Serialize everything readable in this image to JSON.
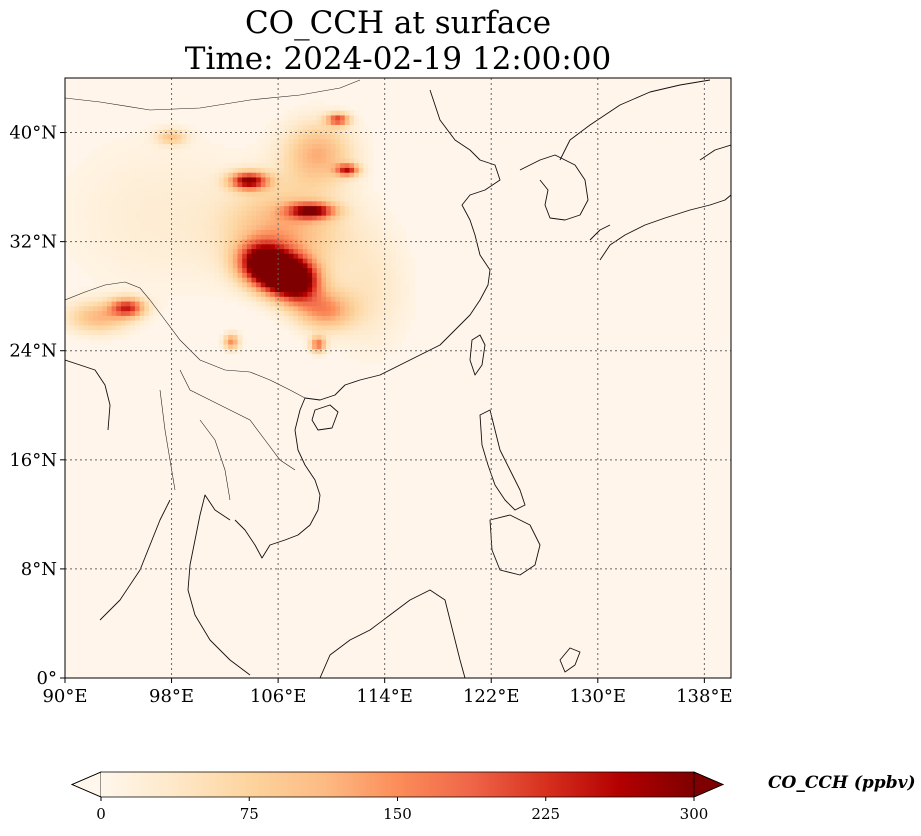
{
  "title": {
    "line1": "CO_CCH at surface",
    "line2": "Time: 2024-02-19 12:00:00"
  },
  "map": {
    "projection": "PlateCarree",
    "lon_range": [
      90,
      140
    ],
    "lat_range": [
      0,
      44
    ],
    "x_ticks": [
      {
        "value": 90,
        "label": "90°E"
      },
      {
        "value": 98,
        "label": "98°E"
      },
      {
        "value": 106,
        "label": "106°E"
      },
      {
        "value": 114,
        "label": "114°E"
      },
      {
        "value": 122,
        "label": "122°E"
      },
      {
        "value": 130,
        "label": "130°E"
      },
      {
        "value": 138,
        "label": "138°E"
      }
    ],
    "y_ticks": [
      {
        "value": 0,
        "label": "0°"
      },
      {
        "value": 8,
        "label": "8°N"
      },
      {
        "value": 16,
        "label": "16°N"
      },
      {
        "value": 24,
        "label": "24°N"
      },
      {
        "value": 32,
        "label": "32°N"
      },
      {
        "value": 40,
        "label": "40°N"
      }
    ],
    "gridlines": true,
    "background_color": "#fff5eb",
    "field": {
      "variable": "CO_CCH",
      "units": "ppbv",
      "hotspots": [
        {
          "lon": 106.2,
          "lat": 29.6,
          "value": 300,
          "spread_lon": 1.4,
          "spread_lat": 1.0
        },
        {
          "lon": 104.8,
          "lat": 30.6,
          "value": 270,
          "spread_lon": 1.3,
          "spread_lat": 1.0
        },
        {
          "lon": 107.5,
          "lat": 29.0,
          "value": 230,
          "spread_lon": 1.2,
          "spread_lat": 1.1
        },
        {
          "lon": 103.8,
          "lat": 36.5,
          "value": 270,
          "spread_lon": 1.0,
          "spread_lat": 0.45
        },
        {
          "lon": 108.5,
          "lat": 34.3,
          "value": 250,
          "spread_lon": 1.2,
          "spread_lat": 0.4
        },
        {
          "lon": 111.2,
          "lat": 37.3,
          "value": 210,
          "spread_lon": 0.6,
          "spread_lat": 0.3
        },
        {
          "lon": 109.0,
          "lat": 38.5,
          "value": 120,
          "spread_lon": 1.8,
          "spread_lat": 1.6
        },
        {
          "lon": 110.5,
          "lat": 41.0,
          "value": 200,
          "spread_lon": 0.6,
          "spread_lat": 0.3
        },
        {
          "lon": 94.7,
          "lat": 27.2,
          "value": 210,
          "spread_lon": 0.9,
          "spread_lat": 0.5
        },
        {
          "lon": 92.5,
          "lat": 26.5,
          "value": 110,
          "spread_lon": 1.6,
          "spread_lat": 0.8
        },
        {
          "lon": 98.0,
          "lat": 39.7,
          "value": 90,
          "spread_lon": 0.8,
          "spread_lat": 0.4
        },
        {
          "lon": 106.5,
          "lat": 33.0,
          "value": 120,
          "spread_lon": 3.0,
          "spread_lat": 2.2
        },
        {
          "lon": 109.5,
          "lat": 27.0,
          "value": 140,
          "spread_lon": 1.5,
          "spread_lat": 1.0
        },
        {
          "lon": 102.5,
          "lat": 24.7,
          "value": 150,
          "spread_lon": 0.4,
          "spread_lat": 0.4
        },
        {
          "lon": 109.0,
          "lat": 24.5,
          "value": 170,
          "spread_lon": 0.4,
          "spread_lat": 0.4
        },
        {
          "lon": 112.8,
          "lat": 28.5,
          "value": 40,
          "spread_lon": 2.0,
          "spread_lat": 3.0
        },
        {
          "lon": 97.0,
          "lat": 34.0,
          "value": 25,
          "spread_lon": 5.0,
          "spread_lat": 4.0
        }
      ]
    }
  },
  "colorbar": {
    "colormap": "OrRd",
    "min": 0,
    "max": 300,
    "extend": "both",
    "ticks": [
      {
        "value": 0,
        "label": "0"
      },
      {
        "value": 75,
        "label": "75"
      },
      {
        "value": 150,
        "label": "150"
      },
      {
        "value": 225,
        "label": "225"
      },
      {
        "value": 300,
        "label": "300"
      }
    ],
    "label": "CO_CCH (ppbv)",
    "colors": [
      "#fff7ec",
      "#fee8c8",
      "#fdd49e",
      "#fdbb84",
      "#fc8d59",
      "#ef6548",
      "#d7301f",
      "#b30000",
      "#7f0000"
    ]
  }
}
